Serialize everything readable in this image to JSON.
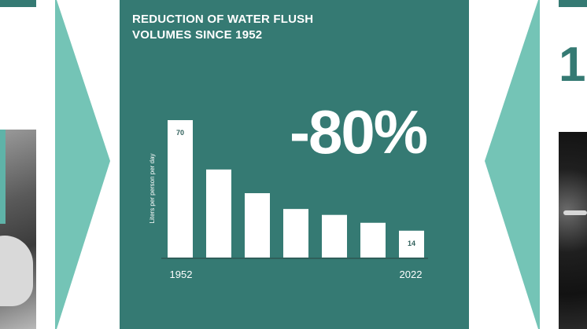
{
  "panel": {
    "title_line1": "REDUCTION OF WATER FLUSH",
    "title_line2": "VOLUMES SINCE 1952",
    "headline_value": "-80%"
  },
  "right_photo": {
    "big_digit": "1"
  },
  "colors": {
    "panel_bg": "#357a73",
    "chevron": "#74c4b6",
    "bar": "#ffffff"
  },
  "chart_data": {
    "type": "bar",
    "title": "REDUCTION OF WATER FLUSH VOLUMES SINCE 1952",
    "ylabel": "Liters per person per day",
    "ylim": [
      0,
      70
    ],
    "grid": false,
    "x_start_label": "1952",
    "x_end_label": "2022",
    "values": [
      70,
      45,
      33,
      25,
      22,
      18,
      14
    ],
    "data_labels": [
      "70",
      "",
      "",
      "",
      "",
      "",
      "14"
    ]
  }
}
